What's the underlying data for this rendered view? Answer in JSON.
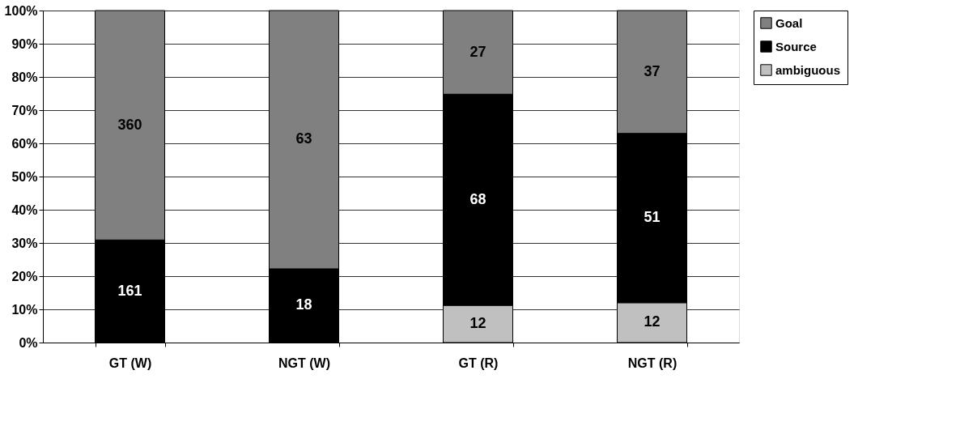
{
  "chart_data": {
    "type": "bar",
    "stacked": true,
    "categories": [
      "GT (W)",
      "NGT (W)",
      "GT (R)",
      "NGT (R)"
    ],
    "series": [
      {
        "name": "ambiguous",
        "color": "#c0c0c0",
        "values": [
          null,
          null,
          11.2,
          12
        ]
      },
      {
        "name": "Source",
        "color": "#000000",
        "values": [
          30.9,
          22.2,
          63.6,
          51
        ]
      },
      {
        "name": "Goal",
        "color": "#808080",
        "values": [
          69.1,
          77.8,
          25.2,
          37
        ]
      }
    ],
    "annotations": [
      "161",
      "360",
      "18",
      "63",
      "12",
      "68",
      "27",
      "12",
      "51",
      "37"
    ],
    "ylim": [
      0,
      100
    ],
    "yticks": [
      {
        "value": 0,
        "label": "0%"
      },
      {
        "value": 10,
        "label": "10%"
      },
      {
        "value": 20,
        "label": "20%"
      },
      {
        "value": 30,
        "label": "30%"
      },
      {
        "value": 40,
        "label": "40%"
      },
      {
        "value": 50,
        "label": "50%"
      },
      {
        "value": 60,
        "label": "60%"
      },
      {
        "value": 70,
        "label": "70%"
      },
      {
        "value": 80,
        "label": "80%"
      },
      {
        "value": 90,
        "label": "90%"
      },
      {
        "value": 100,
        "label": "100%"
      }
    ],
    "grid": "y",
    "legend": "top right"
  }
}
